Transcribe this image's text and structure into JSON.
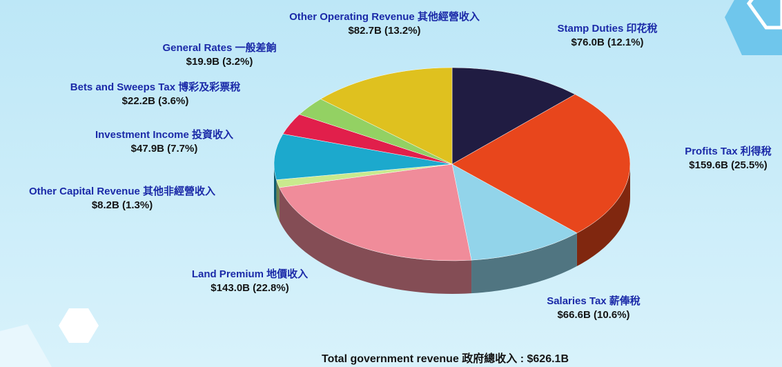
{
  "chart_data": {
    "type": "pie3d",
    "categories": [
      "Stamp Duties 印花稅",
      "Profits Tax 利得稅",
      "Salaries Tax 薪俸稅",
      "Land Premium 地價收入",
      "Other Capital Revenue 其他非經營收入",
      "Investment Income 投資收入",
      "Bets and Sweeps Tax 博彩及彩票稅",
      "General Rates 一般差餉",
      "Other Operating Revenue 其他經營收入"
    ],
    "values": [
      76.0,
      159.6,
      66.6,
      143.0,
      8.2,
      47.9,
      22.2,
      19.9,
      82.7
    ],
    "value_labels": [
      "$76.0B (12.1%)",
      "$159.6B (25.5%)",
      "$66.6B (10.6%)",
      "$143.0B (22.8%)",
      "$8.2B (1.3%)",
      "$47.9B (7.7%)",
      "$22.2B (3.6%)",
      "$19.9B (3.2%)",
      "$82.7B (13.2%)"
    ],
    "colors": [
      "#201c42",
      "#e8461c",
      "#92d4ea",
      "#f08c9a",
      "#c9ea8e",
      "#1ca9cd",
      "#e11f4b",
      "#93d163",
      "#dfc11f"
    ],
    "annotation": "Total government revenue 政府總收入 : $626.1B"
  }
}
